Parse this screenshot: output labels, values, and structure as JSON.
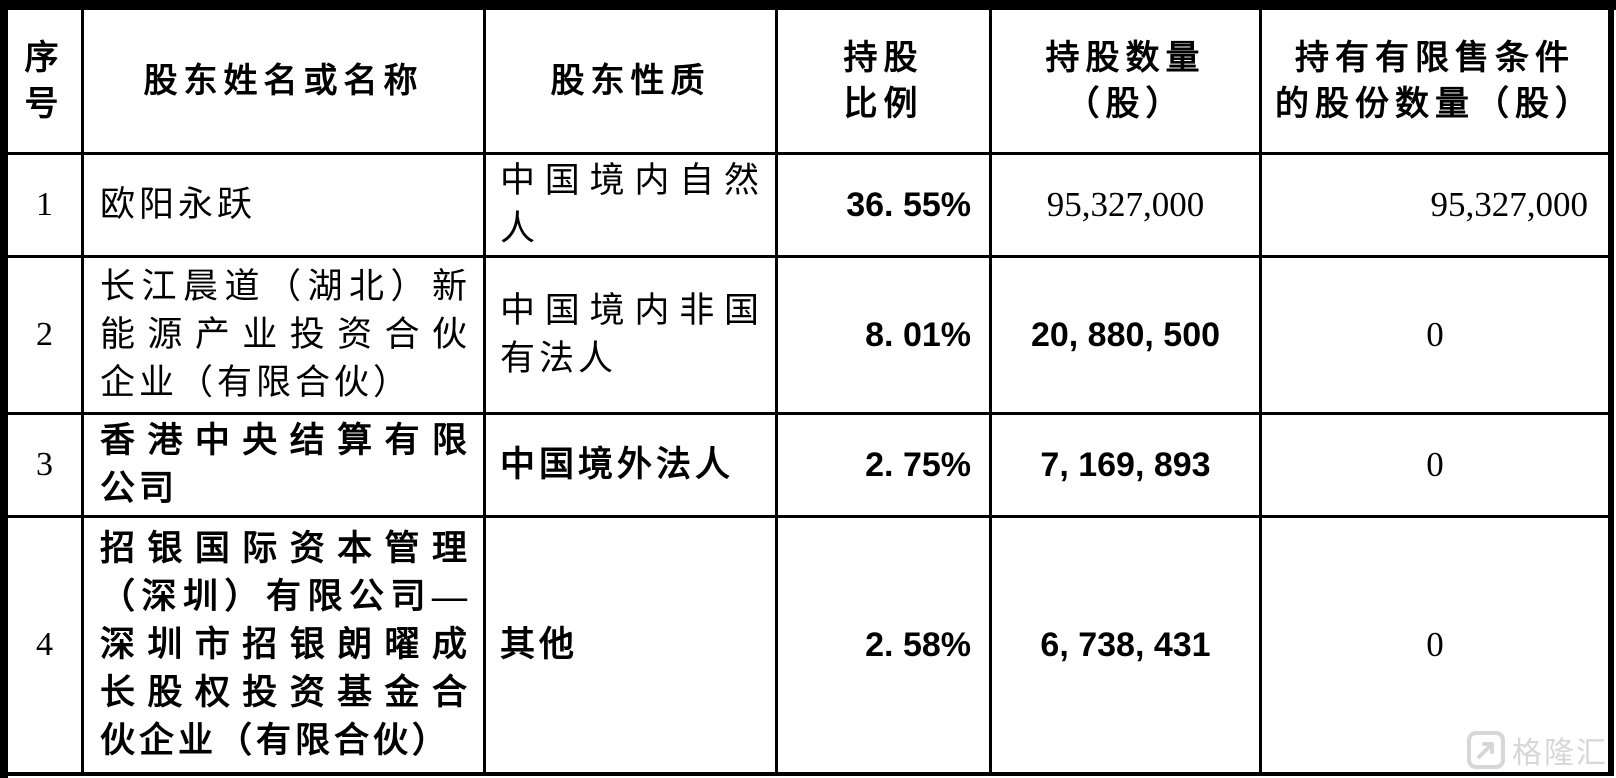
{
  "header": {
    "col_index": "序\n号",
    "col_name": "股东姓名或名称",
    "col_nature": "股东性质",
    "col_ratio": "持股\n比例",
    "col_shares": "持股数量\n（股）",
    "col_restricted": "持有有限售条件\n的股份数量（股）"
  },
  "rows": [
    {
      "index": "1",
      "name": "欧阳永跃",
      "nature": "中国境内自然\n人",
      "ratio": "36. 55%",
      "shares": "95,327,000",
      "restricted": "95,327,000"
    },
    {
      "index": "2",
      "name": "长江晨道（湖北）新\n能源产业投资合伙\n企业（有限合伙）",
      "nature": "中国境内非国\n有法人",
      "ratio": "8. 01%",
      "shares": "20, 880, 500",
      "restricted": "0"
    },
    {
      "index": "3",
      "name": "香港中央结算有限\n公司",
      "nature": "中国境外法人",
      "ratio": "2. 75%",
      "shares": "7, 169, 893",
      "restricted": "0"
    },
    {
      "index": "4",
      "name": "招银国际资本管理\n（深圳）有限公司—\n深圳市招银朗曜成\n长股权投资基金合\n伙企业（有限合伙）",
      "nature": "其他",
      "ratio": "2. 58%",
      "shares": "6, 738, 431",
      "restricted": "0"
    }
  ],
  "watermark": {
    "brand": "格隆汇"
  },
  "colors": {
    "border": "#000000",
    "background": "#ffffff",
    "text": "#000000",
    "watermark_gray": "#d7d7d7"
  }
}
